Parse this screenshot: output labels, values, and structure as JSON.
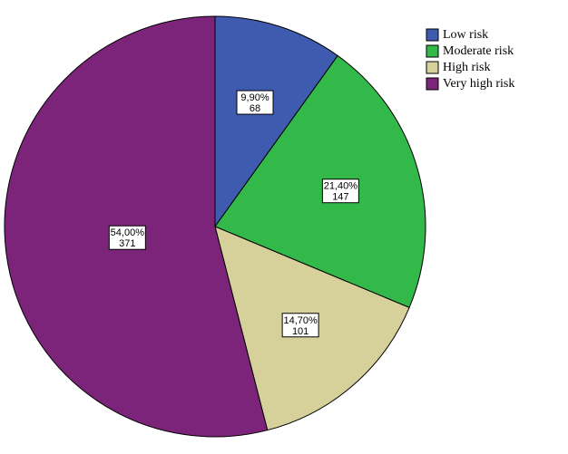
{
  "chart_data": {
    "type": "pie",
    "categories": [
      "Low risk",
      "Moderate risk",
      "High risk",
      "Very high risk"
    ],
    "values": [
      68,
      147,
      101,
      371
    ],
    "percentages": [
      9.9,
      21.4,
      14.7,
      54.0
    ],
    "percentage_labels": [
      "9,90%",
      "21,40%",
      "14,70%",
      "54,00%"
    ],
    "colors": [
      "#3f5bb0",
      "#33b84a",
      "#d6d09a",
      "#7b2479"
    ],
    "legend": "top-right"
  }
}
